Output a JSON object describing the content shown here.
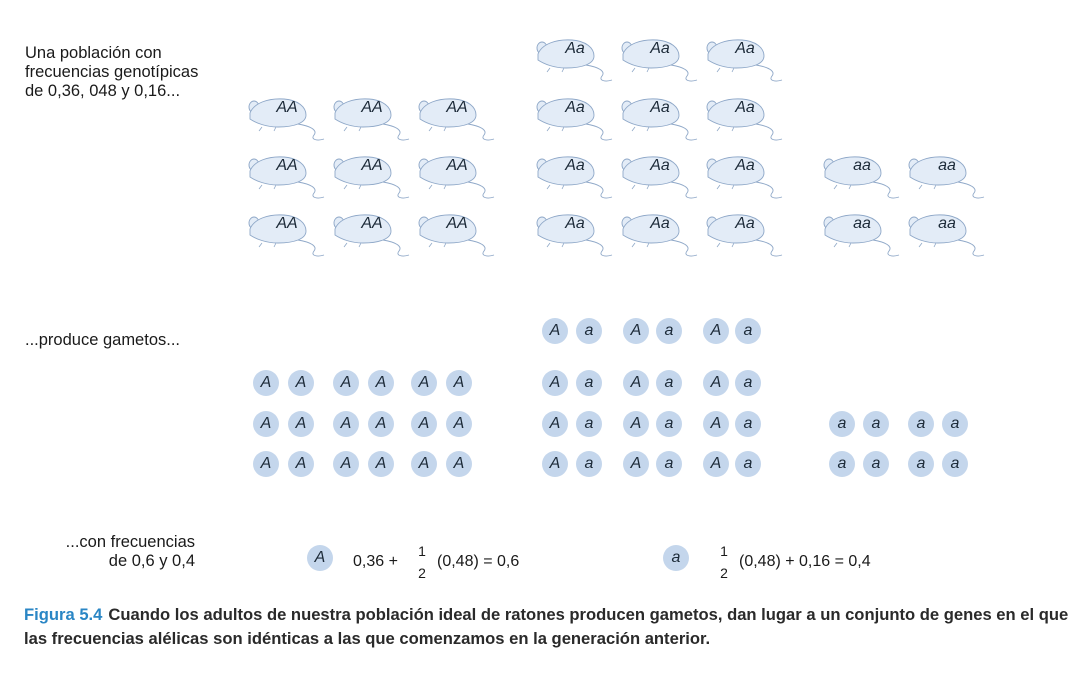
{
  "labels": {
    "population": "Una población con\nfrecuencias genotípicas\nde 0,36, 048 y 0,16...",
    "gametes": "...produce gametos...",
    "frequencies": "...con frecuencias\nde 0,6 y 0,4"
  },
  "genotypes": {
    "AA": "AA",
    "Aa": "Aa",
    "aa": "aa"
  },
  "alleles": {
    "A": "A",
    "a": "a"
  },
  "formulas": {
    "A": {
      "symbol": "A",
      "pre": "0,36 +",
      "num": "1",
      "den": "2",
      "post": "(0,48) = 0,6"
    },
    "a": {
      "symbol": "a",
      "pre": "",
      "num": "1",
      "den": "2",
      "post": "(0,48) + 0,16 = 0,4"
    }
  },
  "caption": {
    "label": "Figura 5.4",
    "text": "Cuando los adultos de nuestra población ideal de ratones producen gametos, dan lugar a un conjunto de genes en el que las frecuencias alélicas son idénticas a las que comenzamos en la generación anterior."
  },
  "colors": {
    "mouse_fill": "#e3ecf7",
    "mouse_stroke": "#8fa8c8",
    "gamete_fill": "#c4d6ec",
    "figure_label": "#2a86c5"
  }
}
